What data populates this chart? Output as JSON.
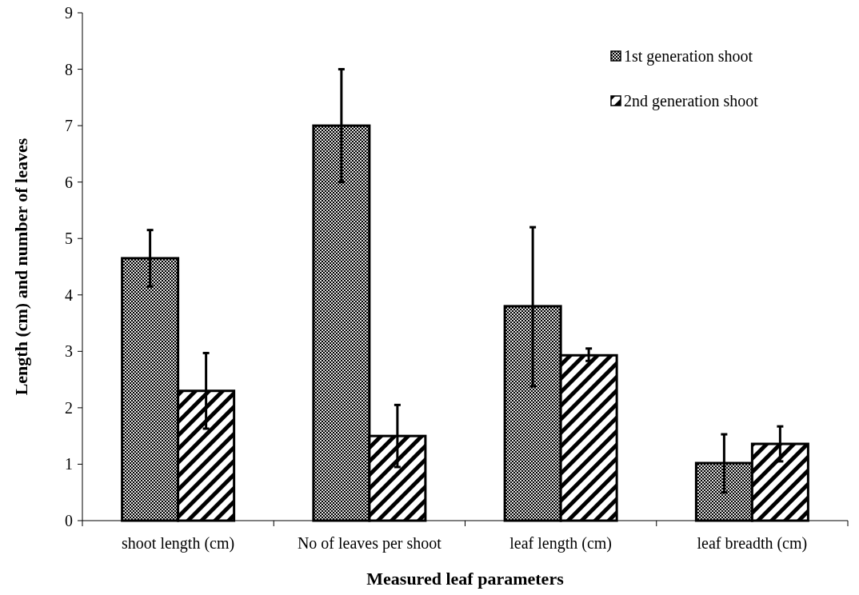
{
  "chart_data": {
    "type": "bar",
    "xlabel": "Measured leaf parameters",
    "ylabel": "Length (cm) and number of leaves",
    "categories": [
      "shoot length (cm)",
      "No of leaves per shoot",
      "leaf length (cm)",
      "leaf breadth (cm)"
    ],
    "series": [
      {
        "name": "1st generation shoot",
        "color": "#000000",
        "values": [
          4.65,
          7,
          3.8,
          1.02
        ],
        "errors": [
          [
            4.15,
            5.15
          ],
          [
            6,
            8
          ],
          [
            2.38,
            5.2
          ],
          [
            0.5,
            1.53
          ]
        ]
      },
      {
        "name": "2nd generation shoot",
        "color": "#000000",
        "values": [
          2.3,
          1.5,
          2.93,
          1.36
        ],
        "errors": [
          [
            1.63,
            2.97
          ],
          [
            0.95,
            2.05
          ],
          [
            2.83,
            3.05
          ],
          [
            1.05,
            1.67
          ]
        ]
      }
    ],
    "ylim": [
      0,
      9
    ],
    "yticks": [
      0,
      1,
      2,
      3,
      4,
      5,
      6,
      7,
      8,
      9
    ],
    "grid": false,
    "legend": "top right"
  }
}
